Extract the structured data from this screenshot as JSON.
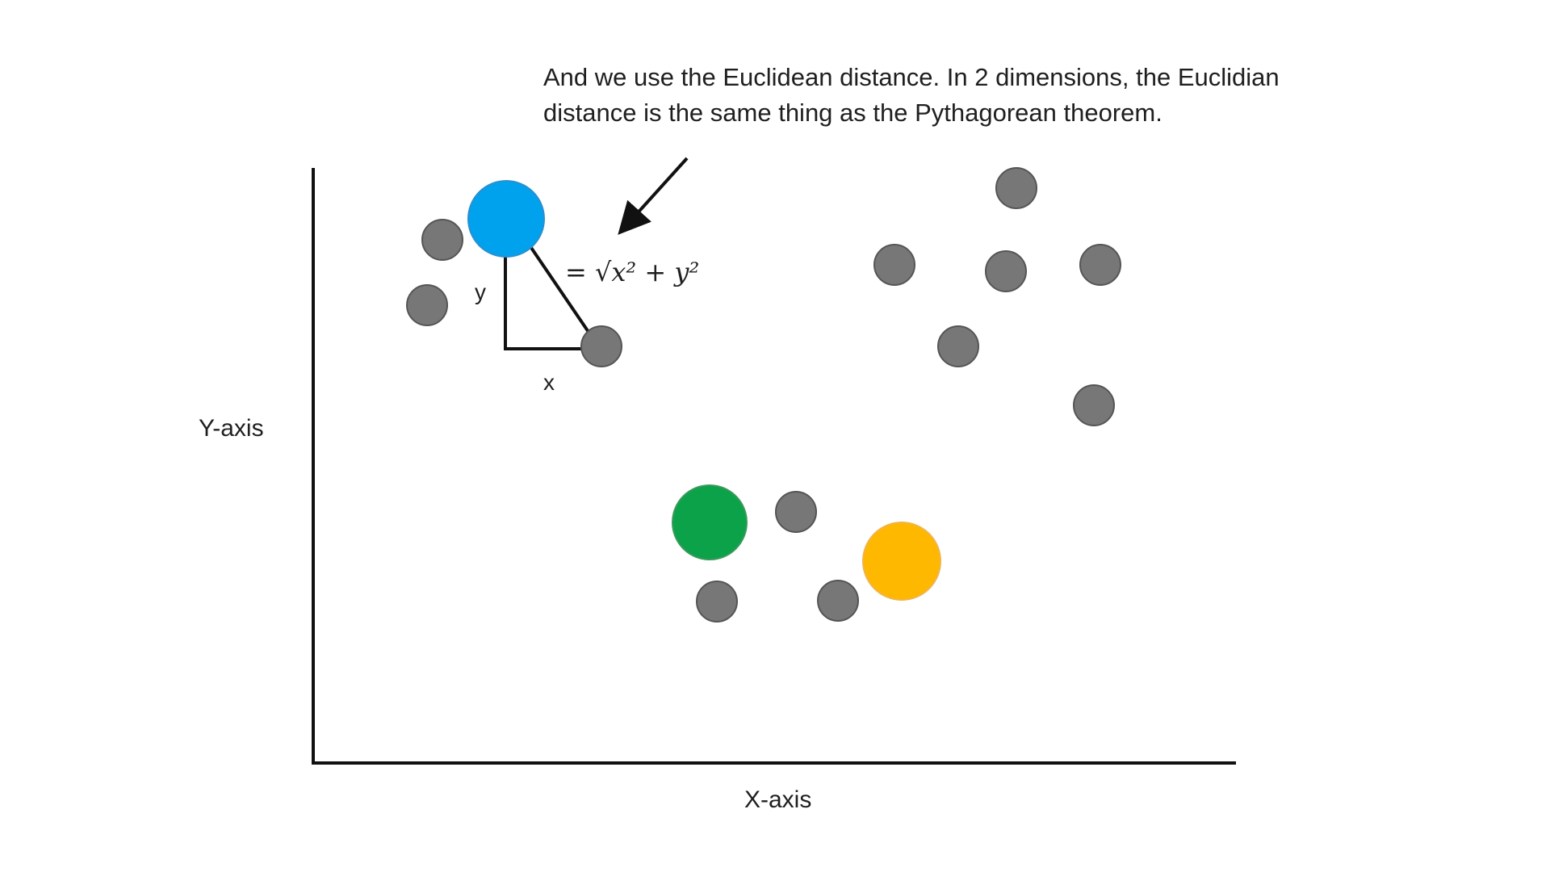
{
  "caption": {
    "line1": "And we use the Euclidean distance. In 2 dimensions, the Euclidian",
    "line2": "distance is the same thing as the Pythagorean theorem."
  },
  "axes": {
    "y_label": "Y-axis",
    "x_label": "X-axis"
  },
  "triangle": {
    "y_label": "y",
    "x_label": "x"
  },
  "formula": "= √x² + y²",
  "colors": {
    "point_gray": "#777777",
    "point_blue": "#00a2ee",
    "point_green": "#0ba24a",
    "point_yellow": "#ffb800",
    "axis": "#111111"
  }
}
